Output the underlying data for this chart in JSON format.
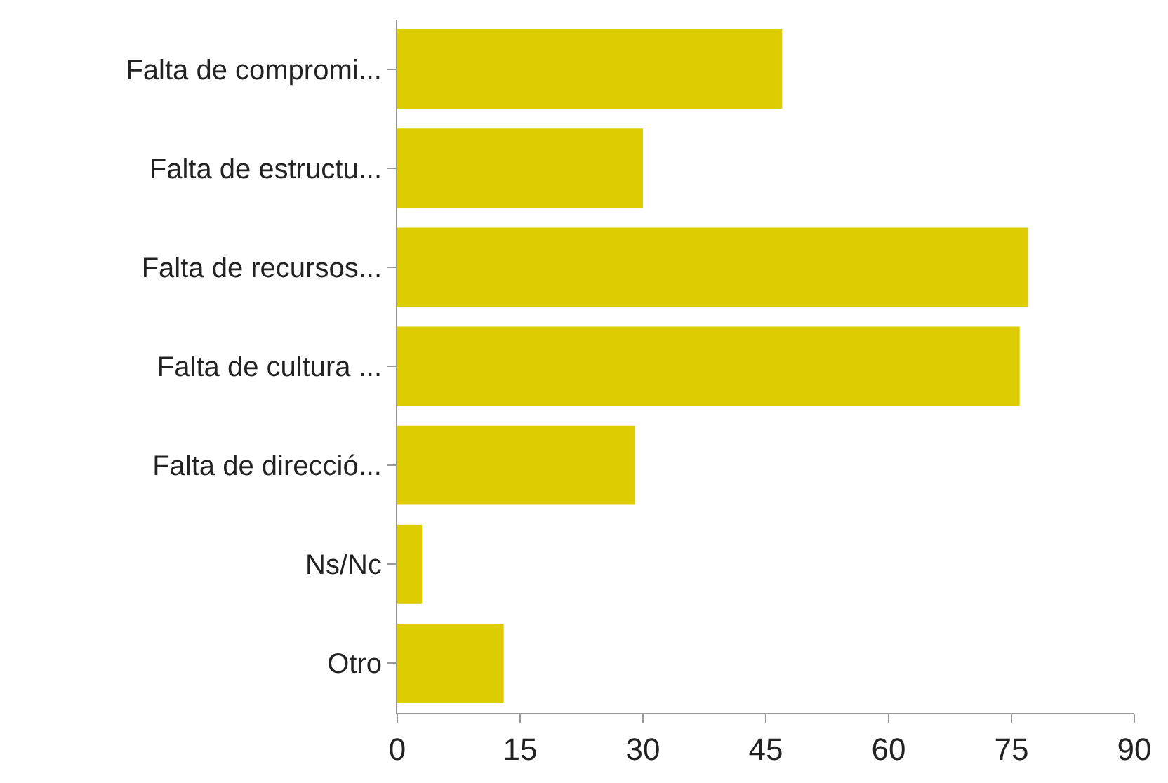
{
  "chart_data": {
    "type": "bar",
    "orientation": "horizontal",
    "categories": [
      "Falta de compromi...",
      "Falta de estructu...",
      "Falta de recursos...",
      "Falta de cultura ...",
      "Falta de direcció...",
      "Ns/Nc",
      "Otro"
    ],
    "values": [
      47,
      30,
      77,
      76,
      29,
      3,
      13
    ],
    "color": "#dccc00",
    "xlim": [
      0,
      90
    ],
    "xticks": [
      0,
      15,
      30,
      45,
      60,
      75,
      90
    ]
  }
}
